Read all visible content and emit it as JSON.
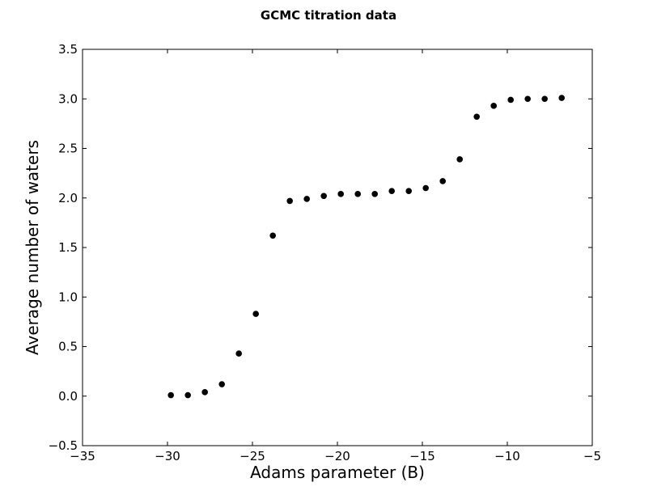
{
  "chart_data": {
    "type": "scatter",
    "title": "GCMC titration data",
    "xlabel": "Adams parameter (B)",
    "ylabel": "Average number of waters",
    "xlim": [
      -35,
      -5
    ],
    "ylim": [
      -0.5,
      3.5
    ],
    "xticks": [
      -35,
      -30,
      -25,
      -20,
      -15,
      -10,
      -5
    ],
    "yticks": [
      -0.5,
      0.0,
      0.5,
      1.0,
      1.5,
      2.0,
      2.5,
      3.0,
      3.5
    ],
    "xtick_labels": [
      "−35",
      "−30",
      "−25",
      "−20",
      "−15",
      "−10",
      "−5"
    ],
    "ytick_labels": [
      "−0.5",
      "0.0",
      "0.5",
      "1.0",
      "1.5",
      "2.0",
      "2.5",
      "3.0",
      "3.5"
    ],
    "grid": false,
    "marker_color": "#000000",
    "series": [
      {
        "x": [
          -29.8,
          -28.8,
          -27.8,
          -26.8,
          -25.8,
          -24.8,
          -23.8,
          -22.8,
          -21.8,
          -20.8,
          -19.8,
          -18.8,
          -17.8,
          -16.8,
          -15.8,
          -14.8,
          -13.8,
          -12.8,
          -11.8,
          -10.8,
          -9.8,
          -8.8,
          -7.8,
          -6.8
        ],
        "y": [
          0.01,
          0.01,
          0.04,
          0.12,
          0.43,
          0.83,
          1.62,
          1.97,
          1.99,
          2.02,
          2.04,
          2.04,
          2.04,
          2.07,
          2.07,
          2.1,
          2.17,
          2.39,
          2.82,
          2.93,
          2.99,
          3.0,
          3.0,
          3.01
        ]
      }
    ]
  }
}
